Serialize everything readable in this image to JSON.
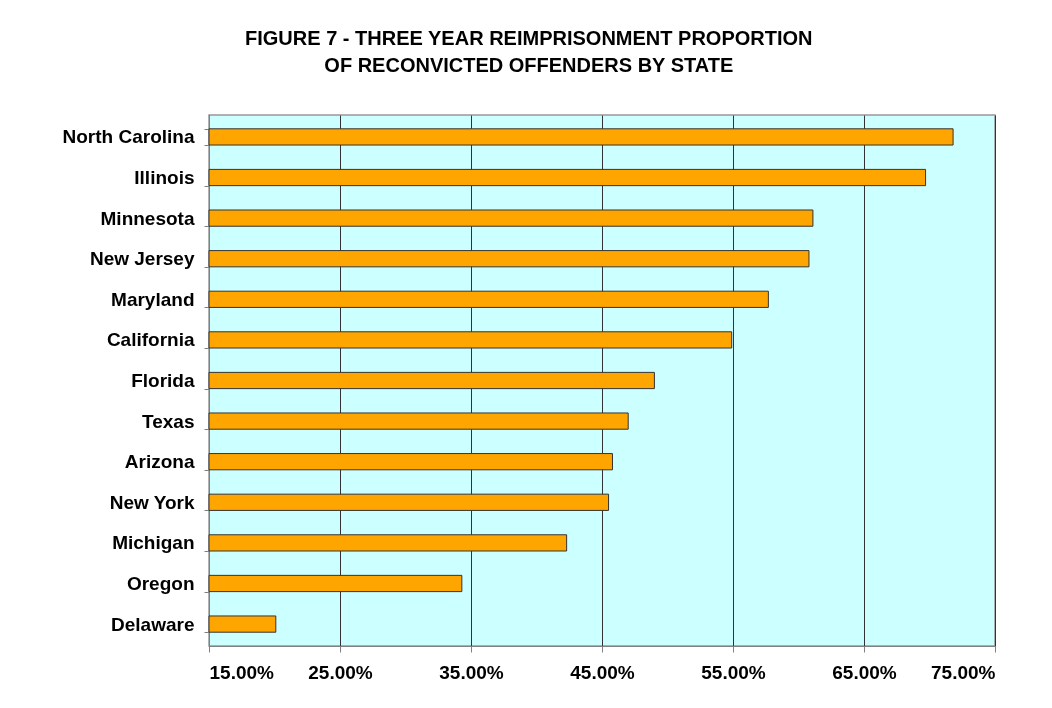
{
  "chart_data": {
    "type": "bar",
    "orientation": "horizontal",
    "title": "FIGURE 7 - THREE YEAR REIMPRISONMENT PROPORTION\nOF RECONVICTED OFFENDERS BY STATE",
    "categories": [
      "North Carolina",
      "Illinois",
      "Minnesota",
      "New Jersey",
      "Maryland",
      "California",
      "Florida",
      "Texas",
      "Arizona",
      "New York",
      "Michigan",
      "Oregon",
      "Delaware"
    ],
    "values": [
      71.8,
      69.7,
      61.1,
      60.8,
      57.7,
      54.9,
      49.0,
      47.0,
      45.8,
      45.5,
      42.3,
      34.3,
      20.1
    ],
    "color": "#ffa500",
    "xlim": [
      15,
      75
    ],
    "xticks": [
      {
        "value": 15,
        "label": "15.00%"
      },
      {
        "value": 25,
        "label": "25.00%"
      },
      {
        "value": 35,
        "label": "35.00%"
      },
      {
        "value": 45,
        "label": "45.00%"
      },
      {
        "value": 55,
        "label": "55.00%"
      },
      {
        "value": 65,
        "label": "65.00%"
      },
      {
        "value": 75,
        "label": "75.00%"
      }
    ],
    "grid": "x"
  }
}
